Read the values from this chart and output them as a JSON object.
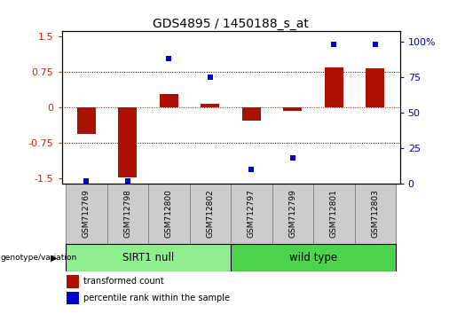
{
  "title": "GDS4895 / 1450188_s_at",
  "samples": [
    "GSM712769",
    "GSM712798",
    "GSM712800",
    "GSM712802",
    "GSM712797",
    "GSM712799",
    "GSM712801",
    "GSM712803"
  ],
  "transformed_count": [
    -0.55,
    -1.48,
    0.28,
    0.08,
    -0.28,
    -0.08,
    0.85,
    0.82
  ],
  "percentile_rank": [
    2,
    2,
    88,
    75,
    10,
    18,
    98,
    98
  ],
  "groups": [
    {
      "label": "SIRT1 null",
      "start": 0,
      "end": 4,
      "color": "#90EE90"
    },
    {
      "label": "wild type",
      "start": 4,
      "end": 8,
      "color": "#4CD44C"
    }
  ],
  "bar_color": "#AA1100",
  "dot_color": "#0000CC",
  "ylim_left": [
    -1.6,
    1.6
  ],
  "ylim_right": [
    0,
    107
  ],
  "yticks_left": [
    -1.5,
    -0.75,
    0,
    0.75,
    1.5
  ],
  "yticks_right": [
    0,
    25,
    50,
    75,
    100
  ],
  "hlines": [
    0.75,
    0.0,
    -0.75
  ],
  "hline_colors": [
    "black",
    "#CC0000",
    "black"
  ],
  "hline_styles": [
    "dotted",
    "dotted",
    "dotted"
  ],
  "left_tick_color": "#CC2200",
  "right_tick_color": "#0000BB",
  "title_fontsize": 10,
  "bar_width": 0.45,
  "cell_bg": "#CCCCCC",
  "cell_edge": "#888888"
}
